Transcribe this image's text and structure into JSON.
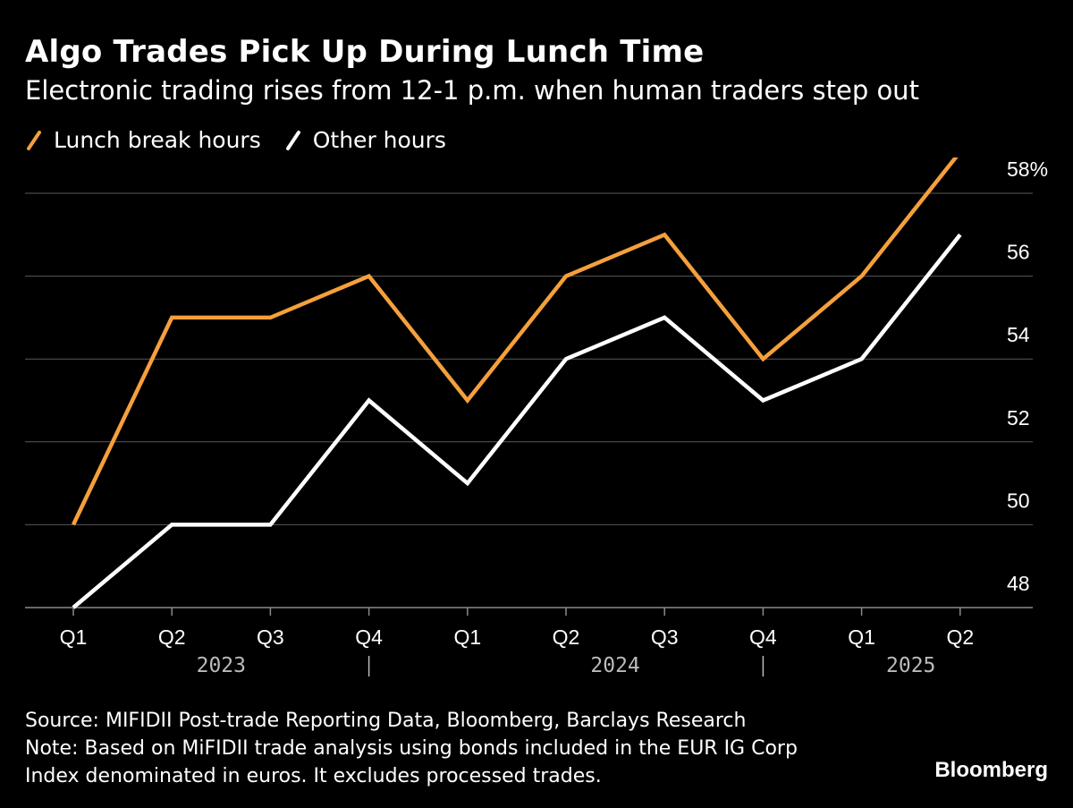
{
  "chart_data": {
    "type": "line",
    "title": "Algo Trades Pick Up During Lunch Time",
    "subtitle": "Electronic trading rises from 12-1 p.m. when human traders step out",
    "categories": [
      "Q1",
      "Q2",
      "Q3",
      "Q4",
      "Q1",
      "Q2",
      "Q3",
      "Q4",
      "Q1",
      "Q2"
    ],
    "year_labels": [
      {
        "label": "2023",
        "after_index": 1
      },
      {
        "label": "2024",
        "after_index": 5
      },
      {
        "label": "2025",
        "after_index": 8
      }
    ],
    "year_dividers": [
      3,
      7
    ],
    "series": [
      {
        "name": "Lunch break hours",
        "color": "#f5a03c",
        "values": [
          50,
          55,
          55,
          56,
          53,
          56,
          57,
          54,
          56,
          59
        ]
      },
      {
        "name": "Other hours",
        "color": "#ffffff",
        "values": [
          48,
          50,
          50,
          53,
          51,
          54,
          55,
          53,
          54,
          57
        ]
      }
    ],
    "y_ticks": [
      "48",
      "50",
      "52",
      "54",
      "56",
      "58%"
    ],
    "ylim": [
      48,
      59
    ],
    "grid": true,
    "y_axis_side": "right",
    "legend_position": "top-left"
  },
  "footer": {
    "source": "Source: MIFIDII Post-trade Reporting Data, Bloomberg, Barclays Research",
    "note_line1": "Note: Based on MiFIDII trade analysis using bonds included in the EUR IG Corp",
    "note_line2": "Index denominated in euros. It excludes processed trades."
  },
  "brand": "Bloomberg"
}
